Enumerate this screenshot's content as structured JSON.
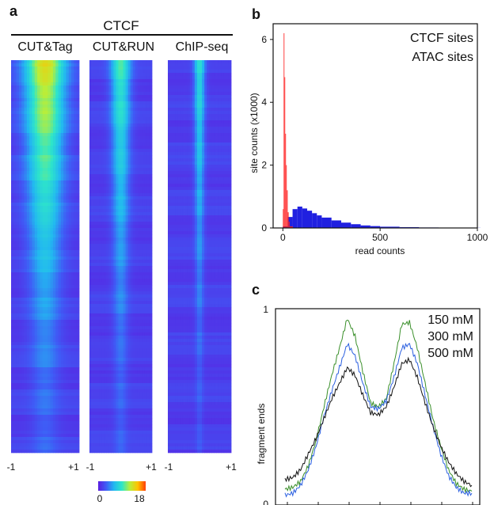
{
  "panels": {
    "a": "a",
    "b": "b",
    "c": "c"
  },
  "chart_data": [
    {
      "panel": "a",
      "type": "heatmap",
      "title": "CTCF",
      "columns": [
        "CUT&Tag",
        "CUT&RUN",
        "ChIP-seq"
      ],
      "x_ticks": [
        "-1",
        "+1"
      ],
      "colorscale": {
        "min_label": "0",
        "max_label": "18",
        "min": 0,
        "max": 18,
        "colors": [
          "#5a1ee0",
          "#3f5cf6",
          "#22b8f0",
          "#2ee6c9",
          "#b8ee3a",
          "#ffc300",
          "#ff3c00"
        ]
      },
      "column_profiles": [
        {
          "name": "CUT&Tag",
          "top_peak": 13.5,
          "bottom_peak": 3.2,
          "width": 0.42
        },
        {
          "name": "CUT&RUN",
          "top_peak": 9.5,
          "bottom_peak": 3.0,
          "width": 0.22
        },
        {
          "name": "ChIP-seq",
          "top_peak": 8.5,
          "bottom_peak": 2.8,
          "width": 0.12
        }
      ]
    },
    {
      "panel": "b",
      "type": "histogram",
      "xlabel": "read counts",
      "ylabel": "site counts (x1000)",
      "xlim": [
        -50,
        1000
      ],
      "ylim": [
        0,
        6.5
      ],
      "x_ticks": [
        0,
        500,
        1000
      ],
      "y_ticks": [
        0,
        2,
        4,
        6
      ],
      "series": [
        {
          "name": "CTCF sites",
          "color": "#2020e0",
          "x": [
            0,
            25,
            50,
            75,
            100,
            125,
            150,
            175,
            200,
            250,
            300,
            350,
            400,
            450,
            500,
            600,
            700,
            800,
            900,
            1000
          ],
          "y": [
            0.05,
            0.35,
            0.6,
            0.68,
            0.62,
            0.55,
            0.47,
            0.4,
            0.33,
            0.24,
            0.17,
            0.12,
            0.08,
            0.06,
            0.04,
            0.025,
            0.015,
            0.01,
            0.006,
            0.004
          ]
        },
        {
          "name": "ATAC sites",
          "color": "#ff2020",
          "x": [
            0,
            4,
            8,
            12,
            16,
            20,
            25,
            30,
            35
          ],
          "y": [
            0.6,
            6.2,
            4.8,
            3.0,
            2.0,
            1.2,
            0.5,
            0.2,
            0.05
          ]
        }
      ]
    },
    {
      "panel": "c",
      "type": "line",
      "ylabel": "fragment ends",
      "y_ticks": [
        "0",
        "1"
      ],
      "ylim": [
        0,
        1
      ],
      "series": [
        {
          "name": "150 mM",
          "color": "#3a8f2a",
          "y": [
            0.08,
            0.09,
            0.12,
            0.2,
            0.33,
            0.5,
            0.66,
            0.8,
            0.95,
            0.86,
            0.68,
            0.52,
            0.5,
            0.54,
            0.72,
            0.92,
            0.93,
            0.8,
            0.62,
            0.44,
            0.3,
            0.18,
            0.11,
            0.08,
            0.07
          ]
        },
        {
          "name": "300 mM",
          "color": "#2a5fe0",
          "y": [
            0.05,
            0.06,
            0.1,
            0.18,
            0.3,
            0.45,
            0.58,
            0.7,
            0.82,
            0.76,
            0.62,
            0.5,
            0.49,
            0.53,
            0.65,
            0.8,
            0.82,
            0.72,
            0.56,
            0.4,
            0.26,
            0.15,
            0.09,
            0.06,
            0.06
          ]
        },
        {
          "name": "500 mM",
          "color": "#111111",
          "y": [
            0.13,
            0.14,
            0.18,
            0.26,
            0.34,
            0.44,
            0.54,
            0.62,
            0.7,
            0.66,
            0.56,
            0.47,
            0.46,
            0.5,
            0.6,
            0.72,
            0.74,
            0.65,
            0.52,
            0.4,
            0.3,
            0.22,
            0.16,
            0.12,
            0.1
          ]
        }
      ]
    }
  ]
}
